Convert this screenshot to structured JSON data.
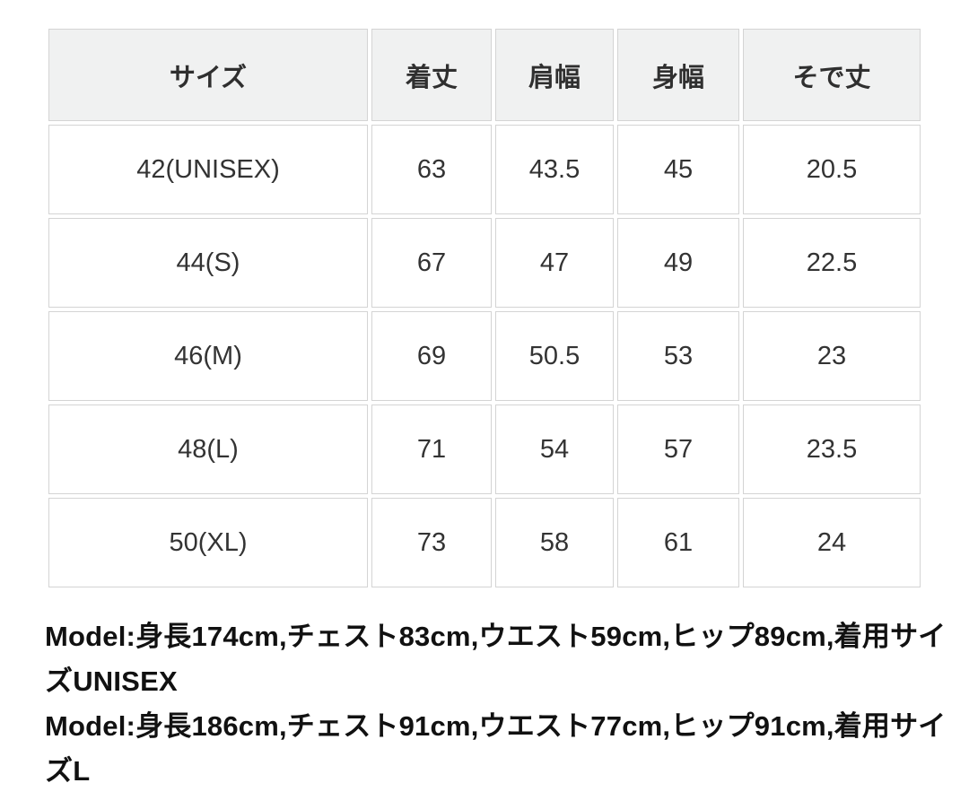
{
  "table": {
    "headers": [
      "サイズ",
      "着丈",
      "肩幅",
      "身幅",
      "そで丈"
    ],
    "rows": [
      {
        "cells": [
          "42(UNISEX)",
          "63",
          "43.5",
          "45",
          "20.5"
        ]
      },
      {
        "cells": [
          "44(S)",
          "67",
          "47",
          "49",
          "22.5"
        ]
      },
      {
        "cells": [
          "46(M)",
          "69",
          "50.5",
          "53",
          "23"
        ]
      },
      {
        "cells": [
          "48(L)",
          "71",
          "54",
          "57",
          "23.5"
        ]
      },
      {
        "cells": [
          "50(XL)",
          "73",
          "58",
          "61",
          "24"
        ]
      }
    ]
  },
  "model_notes": {
    "lines": [
      "Model:身長174cm,チェスト83cm,ウエスト59cm,ヒップ89cm,着用サイ",
      "ズUNISEX",
      "Model:身長186cm,チェスト91cm,ウエスト77cm,ヒップ91cm,着用サイ",
      "ズL"
    ]
  },
  "colors": {
    "header_bg": "#f0f1f1",
    "cell_border": "#d4d4d4",
    "table_text": "#333333",
    "note_text": "#111111",
    "background": "#ffffff"
  }
}
